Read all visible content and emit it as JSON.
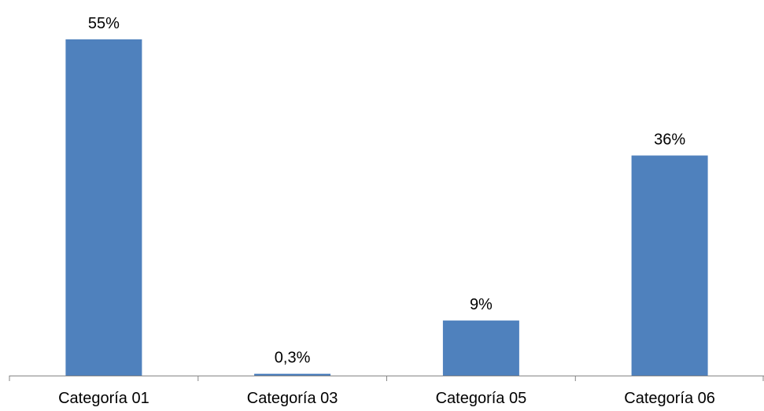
{
  "chart_data": {
    "type": "bar",
    "categories": [
      "Categoría 01",
      "Categoría 03",
      "Categoría 05",
      "Categoría 06"
    ],
    "values": [
      55,
      0.3,
      9,
      36
    ],
    "data_labels": [
      "55%",
      "0,3%",
      "9%",
      "36%"
    ],
    "unit": "%",
    "ylim": [
      0,
      60
    ],
    "grid": false,
    "legend": "none",
    "bar_color": "#4F81BD",
    "axis_color": "#868686"
  }
}
